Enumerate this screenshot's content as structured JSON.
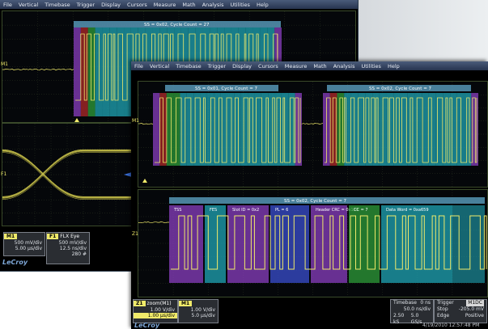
{
  "menu_back": [
    "File",
    "Vertical",
    "Timebase",
    "Trigger",
    "Display",
    "Cursors",
    "Measure",
    "Math",
    "Analysis",
    "Utilities",
    "Help"
  ],
  "menu_front": [
    "File",
    "Vertical",
    "Timebase",
    "Trigger",
    "Display",
    "Cursors",
    "Measure",
    "Math",
    "Analysis",
    "Utilities",
    "Help"
  ],
  "back": {
    "decode_label": "SS = 0x02, Cycle Count = 27",
    "marker_m1": "M1",
    "marker_f1": "F1",
    "m1_box": {
      "tag": "M1",
      "vdiv": "500 mV/div",
      "tdiv": "5.00 µs/div"
    },
    "f1_box": {
      "tag": "F1",
      "name": "FLX Eye",
      "vdiv": "500 mV/div",
      "tdiv": "12.5 ns/div",
      "count": "280 #"
    },
    "brand": "LeCroy"
  },
  "front": {
    "decode_left": "SS = 0x01, Cycle Count = 7",
    "decode_right": "SS = 0x02, Cycle Count = 7",
    "decode_zoom": "SS = 0x02, Cycle Count = 7",
    "marker_m1": "M1",
    "marker_z1": "Z1",
    "fields": [
      "TSS",
      "FES",
      "Slot ID = 0x2",
      "PL = 6",
      "Header CRC = 0x138",
      "CC = 7",
      "Data Word = 0xa659"
    ],
    "z1_box": {
      "tag": "Z1",
      "name": "zoom(M1)",
      "vdiv": "1.00 V/div",
      "tdiv": "1.00 µs/div"
    },
    "m1_box": {
      "tag": "M1",
      "vdiv": "1.00 V/div",
      "tdiv": "5.0 µs/div"
    },
    "timebase": {
      "label": "Timebase",
      "offset": "0 ns",
      "tdiv": "50.0 ns/div",
      "sr": "2.50 kS",
      "sr2": "5.0 GS/s"
    },
    "trigger": {
      "label": "Trigger",
      "badge": "M1DC",
      "mode": "Stop",
      "level": "-205.0 mV",
      "type": "Edge",
      "slope": "Positive"
    },
    "timestamp": "4/19/2010 12:57:48 PM",
    "brand": "LeCroy"
  },
  "colors": {
    "trace": "#f0ea6a",
    "eye": "#c9c24a",
    "purple": "#8a3fc0",
    "teal": "#1fa6b5",
    "green": "#2e9d3a",
    "red": "#b02a2a",
    "blue": "#3a4fd0"
  }
}
